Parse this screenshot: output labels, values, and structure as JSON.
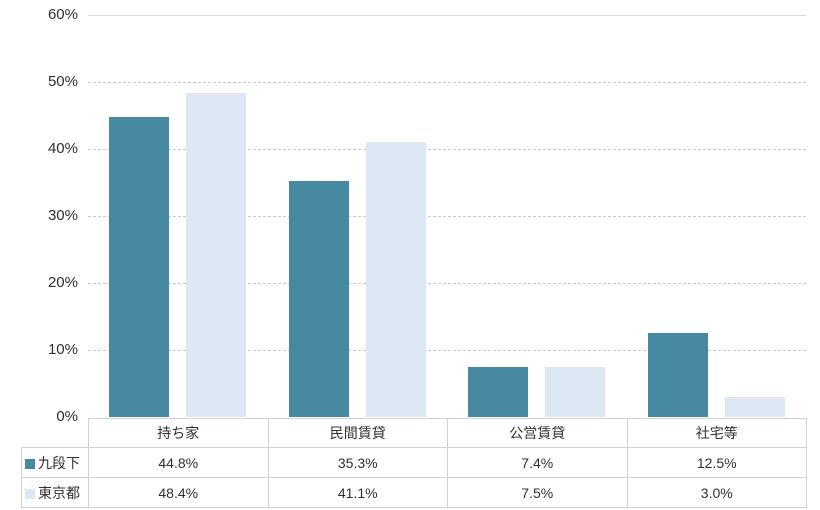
{
  "chart_data": {
    "type": "bar",
    "title": "",
    "xlabel": "",
    "ylabel": "",
    "categories": [
      "持ち家",
      "民間賃貸",
      "公営賃貸",
      "社宅等"
    ],
    "series": [
      {
        "name": "九段下",
        "color": "#4689a1",
        "values": [
          44.8,
          35.3,
          7.4,
          12.5
        ]
      },
      {
        "name": "東京都",
        "color": "#dde8f4",
        "values": [
          48.4,
          41.1,
          7.5,
          3.0
        ]
      }
    ],
    "ylim": [
      0,
      60
    ],
    "ytick_labels": [
      "60%",
      "50%",
      "40%",
      "30%",
      "20%",
      "10%",
      "0%"
    ],
    "value_suffix": "%",
    "grid": "horizontal-dashed",
    "legend_position": "table-rows-left",
    "colors": {
      "gridline_dashed": "#c9c9c9",
      "gridline_top_solid": "#d9d9d9",
      "table_border": "#d2d2d2",
      "text": "#303030",
      "background": "#ffffff"
    }
  }
}
